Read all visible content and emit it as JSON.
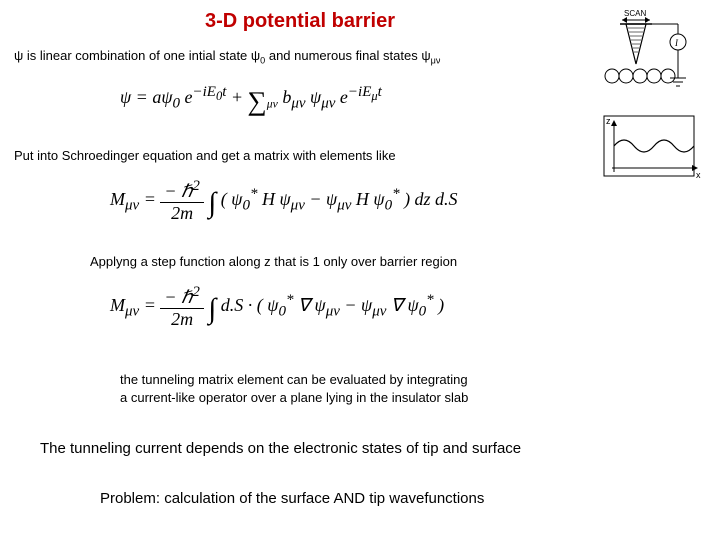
{
  "title": {
    "text": "3-D potential barrier",
    "color": "#c00000",
    "fontsize": 20
  },
  "line1": {
    "prefix": "ψ is linear combination of one intial state ψ",
    "sub1": "0",
    "mid": " and numerous final states ψ",
    "sub2": "μν",
    "fontsize": 13
  },
  "eq1": {
    "html": "ψ = <span style='font-style:italic'>a</span>ψ<sub>0</sub> e<sup>−iE<sub>0</sub>t</sup> + <span style='font-size:1.5em; vertical-align:-0.25em'>∑</span><sub style='font-size:0.65em'>μν</sub> b<sub>μν</sub> ψ<sub>μν</sub> e<sup>−iE<sub>μ</sub>t</sup>",
    "fontsize": 18
  },
  "line2": {
    "text": "Put into Schroedinger equation and get a matrix with elements like",
    "fontsize": 13
  },
  "eq2": {
    "lhs": "M<sub>μν</sub> = ",
    "frac_top": "− ℏ<sup>2</sup>",
    "frac_bot": "2m",
    "rhs": "<span style='font-size:1.6em; vertical-align:-0.25em'>∫</span> ( ψ<sub>0</sub><sup>*</sup> H ψ<sub>μν</sub> − ψ<sub>μν</sub> H ψ<sub>0</sub><sup>*</sup> ) dz d.S",
    "fontsize": 18
  },
  "line3": {
    "text": "Applyng a step function along z that is 1 only over barrier region",
    "fontsize": 13
  },
  "eq3": {
    "lhs": "M<sub>μν</sub> = ",
    "frac_top": "− ℏ<sup>2</sup>",
    "frac_bot": "2m",
    "rhs": "<span style='font-size:1.6em; vertical-align:-0.25em'>∫</span> d.S · ( ψ<sub>0</sub><sup>*</sup> ∇ ψ<sub>μν</sub> − ψ<sub>μν</sub> ∇ ψ<sub>0</sub><sup>*</sup> )",
    "fontsize": 18
  },
  "line4a": {
    "text": "the tunneling matrix element can be evaluated by integrating",
    "fontsize": 13
  },
  "line4b": {
    "text": "a current-like operator over a plane lying in the insulator slab",
    "fontsize": 13
  },
  "line5": {
    "text": "The tunneling current depends on the electronic states of tip and surface",
    "fontsize": 15
  },
  "line6": {
    "text": "Problem: calculation of the surface AND tip wavefunctions",
    "fontsize": 15
  },
  "diagram": {
    "stroke": "#000000",
    "scan_label": "SCAN",
    "z_label": "z",
    "x_label": "x"
  }
}
